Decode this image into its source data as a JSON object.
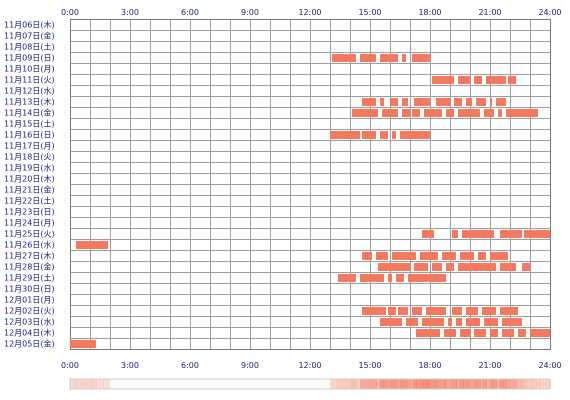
{
  "chart_data": {
    "type": "heatmap",
    "title": "",
    "xlabel": "",
    "ylabel": "",
    "x_unit": "hour of day",
    "xlim": [
      0,
      24
    ],
    "grid": true,
    "time_ticks": [
      "0:00",
      "3:00",
      "6:00",
      "9:00",
      "12:00",
      "15:00",
      "18:00",
      "21:00",
      "24:00"
    ],
    "rows": [
      {
        "label": "11月06日(木)",
        "segments": []
      },
      {
        "label": "11月07日(金)",
        "segments": []
      },
      {
        "label": "11月08日(土)",
        "segments": []
      },
      {
        "label": "11月09日(日)",
        "segments": [
          [
            13.1,
            14.3
          ],
          [
            14.5,
            15.3
          ],
          [
            15.5,
            16.4
          ],
          [
            16.6,
            16.8
          ],
          [
            17.1,
            18.0
          ]
        ]
      },
      {
        "label": "11月10日(月)",
        "segments": []
      },
      {
        "label": "11月11日(火)",
        "segments": [
          [
            18.1,
            19.2
          ],
          [
            19.4,
            20.0
          ],
          [
            20.2,
            20.6
          ],
          [
            20.8,
            21.8
          ],
          [
            21.9,
            22.3
          ]
        ]
      },
      {
        "label": "11月12日(水)",
        "segments": []
      },
      {
        "label": "11月13日(木)",
        "segments": [
          [
            14.6,
            15.3
          ],
          [
            15.5,
            15.7
          ],
          [
            16.0,
            16.4
          ],
          [
            16.6,
            16.9
          ],
          [
            17.2,
            18.0
          ],
          [
            18.3,
            19.0
          ],
          [
            19.2,
            19.6
          ],
          [
            19.8,
            20.1
          ],
          [
            20.3,
            20.8
          ],
          [
            21.0,
            21.1
          ],
          [
            21.3,
            21.8
          ]
        ]
      },
      {
        "label": "11月14日(金)",
        "segments": [
          [
            14.1,
            15.4
          ],
          [
            15.6,
            16.4
          ],
          [
            16.6,
            17.0
          ],
          [
            17.1,
            17.5
          ],
          [
            17.7,
            18.6
          ],
          [
            18.8,
            19.2
          ],
          [
            19.4,
            20.5
          ],
          [
            20.7,
            21.2
          ],
          [
            21.4,
            21.6
          ],
          [
            21.8,
            23.4
          ]
        ]
      },
      {
        "label": "11月15日(土)",
        "segments": []
      },
      {
        "label": "11月16日(日)",
        "segments": [
          [
            13.0,
            14.5
          ],
          [
            14.6,
            15.3
          ],
          [
            15.5,
            15.9
          ],
          [
            16.1,
            16.3
          ],
          [
            16.5,
            18.0
          ]
        ]
      },
      {
        "label": "11月17日(月)",
        "segments": []
      },
      {
        "label": "11月18日(火)",
        "segments": []
      },
      {
        "label": "11月19日(水)",
        "segments": []
      },
      {
        "label": "11月20日(木)",
        "segments": []
      },
      {
        "label": "11月21日(金)",
        "segments": []
      },
      {
        "label": "11月22日(土)",
        "segments": []
      },
      {
        "label": "11月23日(日)",
        "segments": []
      },
      {
        "label": "11月24日(月)",
        "segments": []
      },
      {
        "label": "11月25日(火)",
        "segments": [
          [
            17.6,
            18.2
          ],
          [
            19.1,
            19.4
          ],
          [
            19.6,
            21.2
          ],
          [
            21.5,
            22.6
          ],
          [
            22.7,
            24.0
          ]
        ]
      },
      {
        "label": "11月26日(水)",
        "segments": [
          [
            0.3,
            1.9
          ]
        ]
      },
      {
        "label": "11月27日(木)",
        "segments": [
          [
            14.6,
            15.1
          ],
          [
            15.3,
            15.9
          ],
          [
            16.1,
            17.3
          ],
          [
            17.5,
            18.4
          ],
          [
            18.6,
            19.3
          ],
          [
            19.5,
            20.2
          ],
          [
            20.4,
            20.8
          ],
          [
            21.0,
            21.9
          ]
        ]
      },
      {
        "label": "11月28日(金)",
        "segments": [
          [
            15.4,
            17.0
          ],
          [
            17.2,
            17.9
          ],
          [
            18.1,
            18.6
          ],
          [
            18.8,
            19.2
          ],
          [
            19.4,
            21.3
          ],
          [
            21.5,
            22.3
          ],
          [
            22.6,
            23.0
          ]
        ]
      },
      {
        "label": "11月29日(土)",
        "segments": [
          [
            13.4,
            14.3
          ],
          [
            14.5,
            15.7
          ],
          [
            15.9,
            16.1
          ],
          [
            16.3,
            16.7
          ],
          [
            16.9,
            18.8
          ]
        ]
      },
      {
        "label": "11月30日(日)",
        "segments": []
      },
      {
        "label": "12月01日(月)",
        "segments": []
      },
      {
        "label": "12月02日(火)",
        "segments": [
          [
            14.6,
            15.8
          ],
          [
            15.9,
            16.3
          ],
          [
            16.4,
            16.9
          ],
          [
            17.1,
            17.6
          ],
          [
            17.8,
            18.8
          ],
          [
            19.1,
            19.6
          ],
          [
            19.8,
            20.4
          ],
          [
            20.6,
            21.3
          ],
          [
            21.5,
            22.4
          ]
        ]
      },
      {
        "label": "12月03日(水)",
        "segments": [
          [
            15.5,
            16.6
          ],
          [
            16.8,
            17.4
          ],
          [
            17.6,
            18.7
          ],
          [
            18.9,
            19.1
          ],
          [
            19.3,
            19.6
          ],
          [
            19.8,
            20.5
          ],
          [
            20.7,
            21.4
          ],
          [
            21.6,
            22.6
          ]
        ]
      },
      {
        "label": "12月04日(木)",
        "segments": [
          [
            17.3,
            18.5
          ],
          [
            18.7,
            19.3
          ],
          [
            19.5,
            20.0
          ],
          [
            20.2,
            20.8
          ],
          [
            21.0,
            21.4
          ],
          [
            21.6,
            22.2
          ],
          [
            22.4,
            22.8
          ],
          [
            23.0,
            24.0
          ]
        ]
      },
      {
        "label": "12月05日(金)",
        "segments": [
          [
            0.0,
            1.3
          ]
        ]
      }
    ]
  }
}
